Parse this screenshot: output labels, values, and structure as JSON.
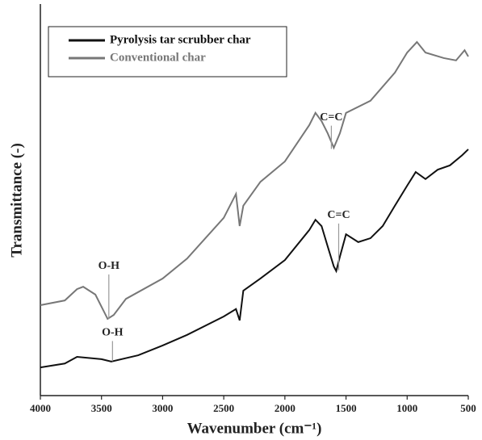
{
  "chart_data": {
    "type": "line",
    "xlabel": "Wavenumber (cm⁻¹)",
    "ylabel": "Transmittance (-)",
    "x_reversed": true,
    "xlim": [
      4000,
      500
    ],
    "ylim": [
      0,
      100
    ],
    "xticks": [
      4000,
      3500,
      3000,
      2500,
      2000,
      1500,
      1000,
      500
    ],
    "legend": "upper left",
    "series": [
      {
        "name": "Pyrolysis tar scrubber char",
        "color": "#111111",
        "x": [
          4000,
          3800,
          3700,
          3500,
          3420,
          3200,
          3000,
          2800,
          2500,
          2400,
          2370,
          2340,
          2200,
          2000,
          1800,
          1750,
          1700,
          1650,
          1600,
          1580,
          1550,
          1500,
          1400,
          1300,
          1200,
          1100,
          1000,
          930,
          850,
          750,
          650,
          550,
          500
        ],
        "values": [
          7.2,
          8.2,
          9.9,
          9.3,
          8.7,
          10.3,
          12.8,
          15.5,
          20.2,
          22.1,
          19.2,
          26.8,
          29.9,
          34.6,
          42.3,
          44.9,
          43.3,
          38.1,
          33,
          31.8,
          35.5,
          41.2,
          39.2,
          40.2,
          43.3,
          48.5,
          53.6,
          57.1,
          55.3,
          57.7,
          58.8,
          61.4,
          62.9
        ]
      },
      {
        "name": "Conventional char",
        "color": "#777777",
        "x": [
          4000,
          3800,
          3700,
          3650,
          3550,
          3450,
          3400,
          3300,
          3000,
          2800,
          2500,
          2400,
          2370,
          2340,
          2200,
          2000,
          1800,
          1750,
          1700,
          1650,
          1600,
          1550,
          1500,
          1300,
          1100,
          1000,
          920,
          850,
          700,
          600,
          530,
          500
        ],
        "values": [
          23.1,
          24.3,
          27.2,
          27.8,
          25.8,
          19.6,
          20.6,
          24.7,
          29.9,
          35,
          45.4,
          51.5,
          43.3,
          48.5,
          54.6,
          59.8,
          69.1,
          72.2,
          70.1,
          67,
          63.3,
          67,
          72.2,
          75.3,
          82.5,
          87.6,
          90.3,
          87.6,
          86.2,
          85.6,
          88.2,
          86.6
        ]
      }
    ],
    "annotations": [
      {
        "text": "O-H",
        "x": 3440,
        "y": 33,
        "y_end": 19.6
      },
      {
        "text": "C=C",
        "x": 1620,
        "y": 71,
        "y_end": 63
      },
      {
        "text": "C=C",
        "x": 1560,
        "y": 46,
        "y_end": 32
      },
      {
        "text": "O-H",
        "x": 3410,
        "y": 16,
        "y_end": 8.8
      }
    ]
  }
}
